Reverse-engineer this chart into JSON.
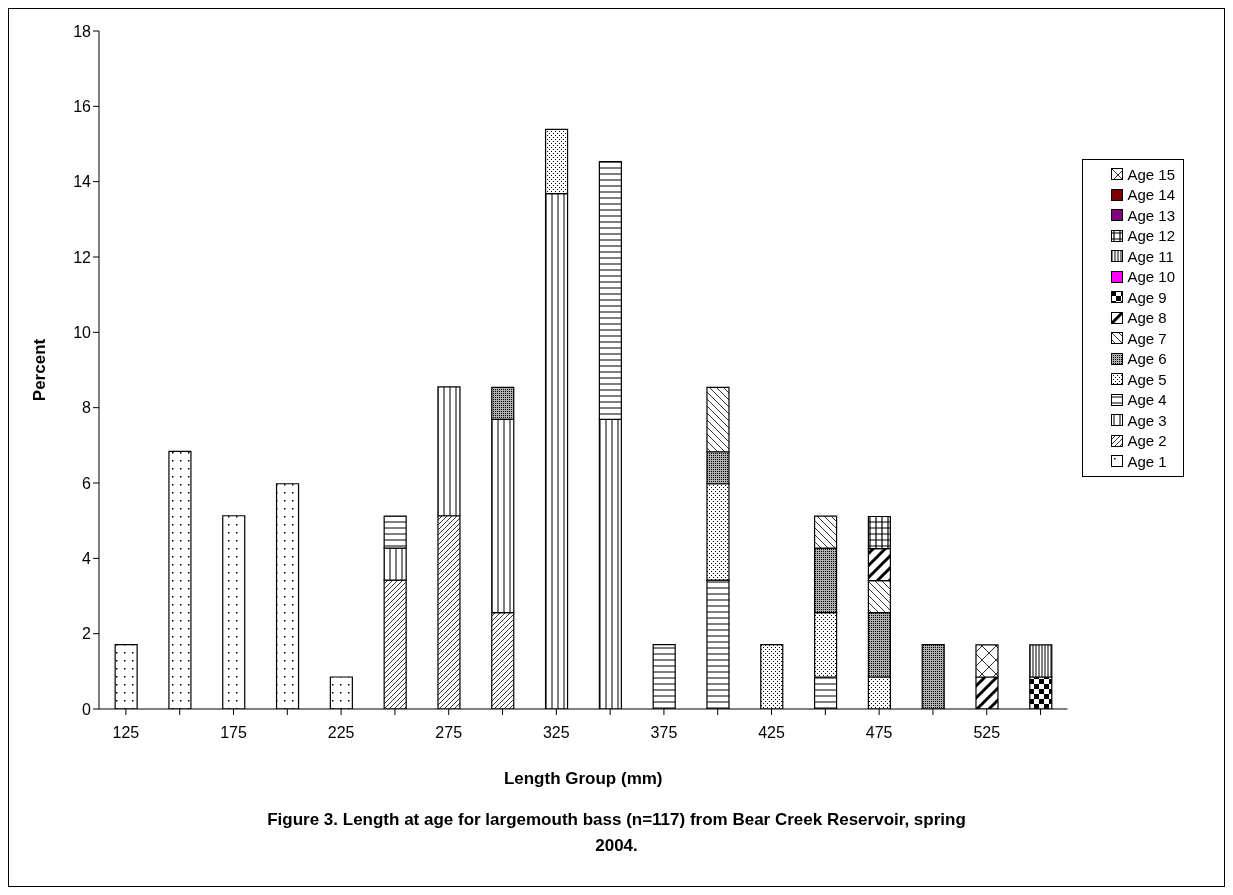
{
  "chart_data": {
    "type": "bar",
    "stacked": true,
    "title": "Figure 3.  Length at age for largemouth bass (n=117) from Bear Creek Reservoir, spring 2004.",
    "xlabel": "Length Group (mm)",
    "ylabel": "Percent",
    "categories": [
      "125",
      null,
      "175",
      null,
      "225",
      null,
      "275",
      null,
      "325",
      null,
      "375",
      null,
      "425",
      null,
      "475",
      null,
      "525",
      null
    ],
    "ylim": [
      0,
      18
    ],
    "yticks": [
      0,
      2,
      4,
      6,
      8,
      10,
      12,
      14,
      16,
      18
    ],
    "grid": false,
    "legend": "right",
    "series": [
      {
        "name": "Age 1",
        "color": "#000000",
        "values": [
          1.71,
          6.84,
          5.13,
          5.98,
          0.85,
          null,
          null,
          null,
          null,
          null,
          null,
          null,
          null,
          null,
          null,
          null,
          null,
          null
        ]
      },
      {
        "name": "Age 2",
        "color": "#000000",
        "values": [
          null,
          null,
          null,
          null,
          null,
          3.42,
          5.13,
          2.56,
          null,
          null,
          null,
          null,
          null,
          null,
          null,
          null,
          null,
          null
        ]
      },
      {
        "name": "Age 3",
        "color": "#000000",
        "values": [
          null,
          null,
          null,
          null,
          null,
          0.85,
          3.42,
          5.13,
          13.68,
          7.69,
          null,
          null,
          null,
          null,
          null,
          null,
          null,
          null
        ]
      },
      {
        "name": "Age 4",
        "color": "#000000",
        "values": [
          null,
          null,
          null,
          null,
          null,
          0.85,
          null,
          null,
          null,
          6.84,
          1.71,
          3.42,
          null,
          0.85,
          null,
          null,
          null,
          null
        ]
      },
      {
        "name": "Age 5",
        "color": "#000000",
        "values": [
          null,
          null,
          null,
          null,
          null,
          null,
          null,
          null,
          1.71,
          null,
          null,
          2.56,
          1.71,
          1.71,
          0.85,
          null,
          null,
          null
        ]
      },
      {
        "name": "Age 6",
        "color": "#000000",
        "values": [
          null,
          null,
          null,
          null,
          null,
          null,
          null,
          0.85,
          null,
          null,
          null,
          0.85,
          null,
          1.71,
          1.71,
          1.71,
          null,
          null
        ]
      },
      {
        "name": "Age 7",
        "color": "#000000",
        "values": [
          null,
          null,
          null,
          null,
          null,
          null,
          null,
          null,
          null,
          null,
          null,
          1.71,
          null,
          0.85,
          0.85,
          null,
          null,
          null
        ]
      },
      {
        "name": "Age 8",
        "color": "#000000",
        "values": [
          null,
          null,
          null,
          null,
          null,
          null,
          null,
          null,
          null,
          null,
          null,
          null,
          null,
          null,
          0.85,
          null,
          0.85,
          null
        ]
      },
      {
        "name": "Age 9",
        "color": "#000000",
        "values": [
          null,
          null,
          null,
          null,
          null,
          null,
          null,
          null,
          null,
          null,
          null,
          null,
          null,
          null,
          null,
          null,
          null,
          0.85
        ]
      },
      {
        "name": "Age 10",
        "color": "#ff00ff",
        "values": [
          null,
          null,
          null,
          null,
          null,
          null,
          null,
          null,
          null,
          null,
          null,
          null,
          null,
          null,
          null,
          null,
          null,
          null
        ]
      },
      {
        "name": "Age 11",
        "color": "#000000",
        "values": [
          null,
          null,
          null,
          null,
          null,
          null,
          null,
          null,
          null,
          null,
          null,
          null,
          null,
          null,
          null,
          null,
          null,
          0.85
        ]
      },
      {
        "name": "Age 12",
        "color": "#000000",
        "values": [
          null,
          null,
          null,
          null,
          null,
          null,
          null,
          null,
          null,
          null,
          null,
          null,
          null,
          null,
          0.85,
          null,
          null,
          null
        ]
      },
      {
        "name": "Age 13",
        "color": "#800080",
        "values": [
          null,
          null,
          null,
          null,
          null,
          null,
          null,
          null,
          null,
          null,
          null,
          null,
          null,
          null,
          null,
          null,
          null,
          null
        ]
      },
      {
        "name": "Age 14",
        "color": "#800000",
        "values": [
          null,
          null,
          null,
          null,
          null,
          null,
          null,
          null,
          null,
          null,
          null,
          null,
          null,
          null,
          null,
          null,
          null,
          null
        ]
      },
      {
        "name": "Age 15",
        "color": "#000000",
        "values": [
          null,
          null,
          null,
          null,
          null,
          null,
          null,
          null,
          null,
          null,
          null,
          null,
          null,
          null,
          null,
          null,
          0.85,
          null
        ]
      }
    ]
  }
}
